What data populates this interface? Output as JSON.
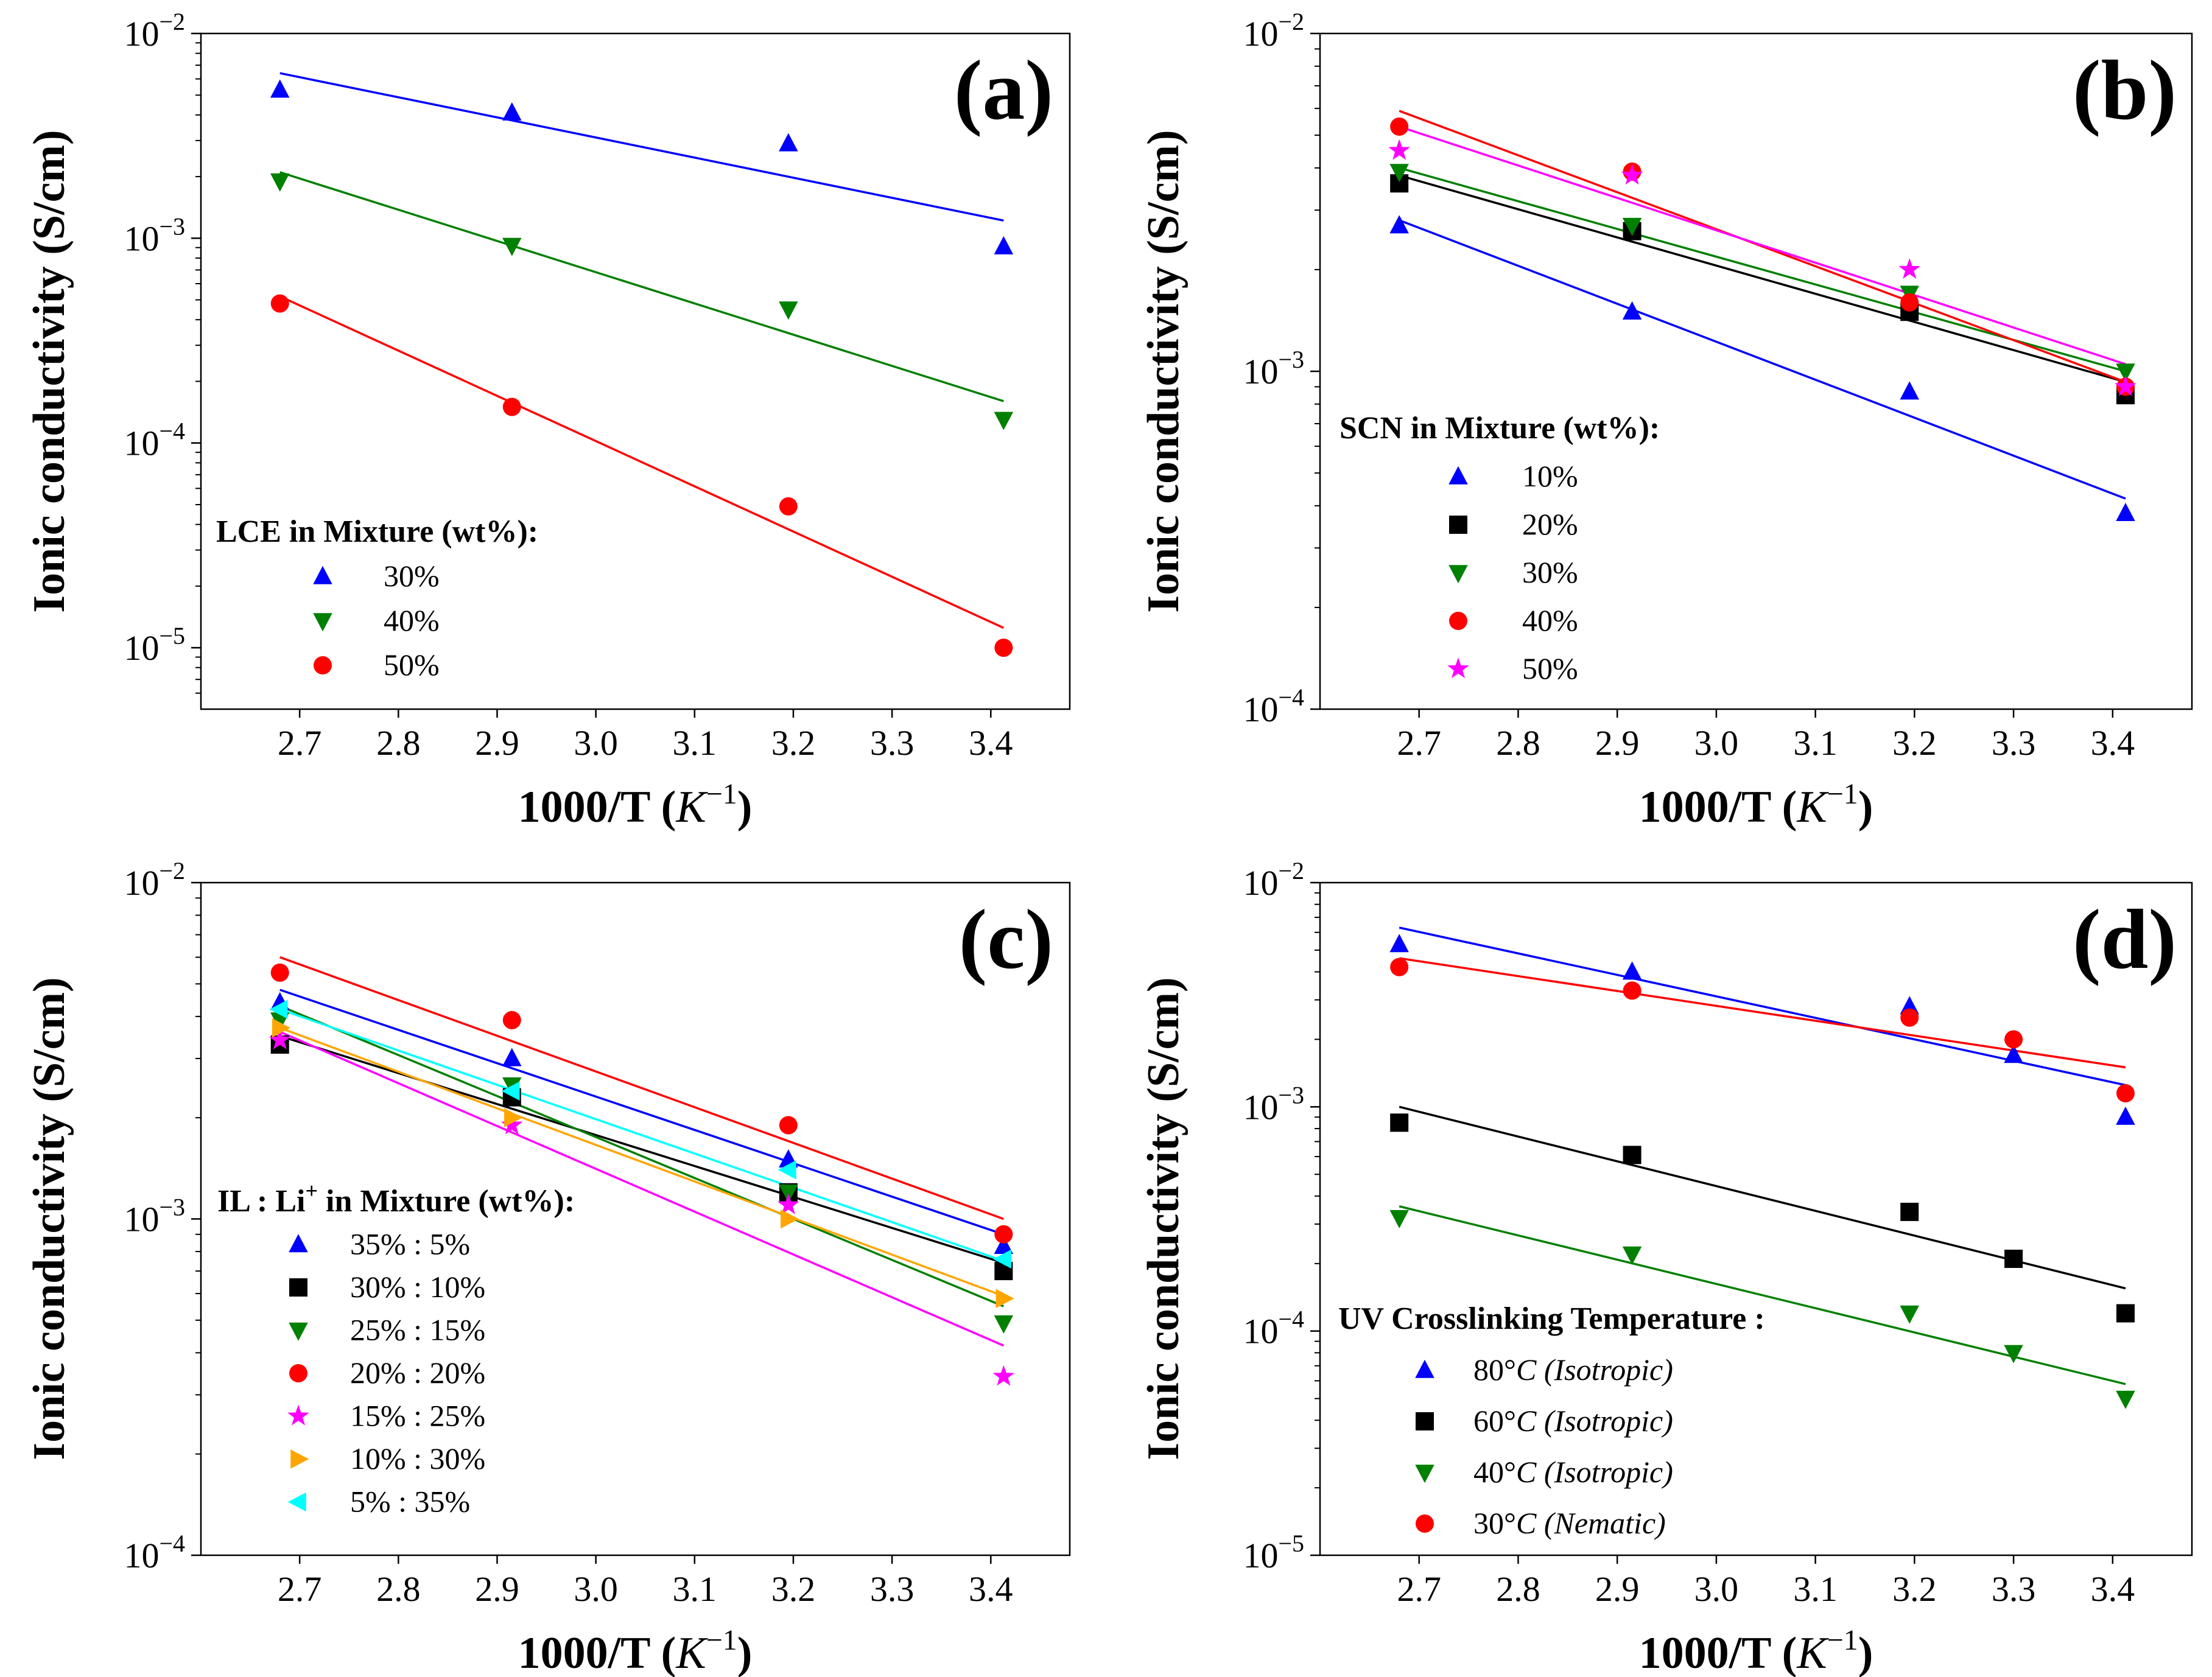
{
  "chart_data": [
    {
      "type": "scatter",
      "panel_label": "(a)",
      "xlabel": "1000/T",
      "xlabel_unit": "K",
      "xlabel_unit_exp": "−1",
      "ylabel": "Ionic conductivity (S/cm)",
      "yscale": "log",
      "xlim": [
        2.6,
        3.48
      ],
      "ylim": [
        -5.3,
        -2
      ],
      "xticks": [
        "2.7",
        "2.8",
        "2.9",
        "3.0",
        "3.1",
        "3.2",
        "3.3",
        "3.4"
      ],
      "yticks": [
        {
          "base": "10",
          "exp": "−2",
          "value": -2
        },
        {
          "base": "10",
          "exp": "−3",
          "value": -3
        },
        {
          "base": "10",
          "exp": "−4",
          "value": -4
        },
        {
          "base": "10",
          "exp": "−5",
          "value": -5
        }
      ],
      "legend_title": "LCE in Mixture (wt%):",
      "series": [
        {
          "name": "30%",
          "color": "#0000ff",
          "marker": "triangle-up",
          "x": [
            2.68,
            2.915,
            3.195,
            3.413
          ],
          "y": [
            0.0053,
            0.0041,
            0.0029,
            0.00091
          ],
          "fit": [
            0.0064,
            0.00122
          ]
        },
        {
          "name": "40%",
          "color": "#008000",
          "marker": "triangle-down",
          "x": [
            2.68,
            2.915,
            3.195,
            3.413
          ],
          "y": [
            0.0019,
            0.00092,
            0.00045,
            0.00013
          ],
          "fit": [
            0.0021,
            0.00016
          ]
        },
        {
          "name": "50%",
          "color": "#ff0000",
          "marker": "circle",
          "x": [
            2.68,
            2.915,
            3.195,
            3.413
          ],
          "y": [
            0.00048,
            0.00015,
            4.9e-05,
            1e-05
          ],
          "fit": [
            0.00052,
            1.25e-05
          ]
        }
      ]
    },
    {
      "type": "scatter",
      "panel_label": "(b)",
      "xlabel": "1000/T",
      "xlabel_unit": "K",
      "xlabel_unit_exp": "−1",
      "ylabel": "Ionic conductivity (S/cm)",
      "yscale": "log",
      "xlim": [
        2.6,
        3.48
      ],
      "ylim": [
        -4,
        -2
      ],
      "xticks": [
        "2.7",
        "2.8",
        "2.9",
        "3.0",
        "3.1",
        "3.2",
        "3.3",
        "3.4"
      ],
      "yticks": [
        {
          "base": "10",
          "exp": "−2",
          "value": -2
        },
        {
          "base": "10",
          "exp": "−3",
          "value": -3
        },
        {
          "base": "10",
          "exp": "−4",
          "value": -4
        }
      ],
      "legend_title": "SCN in Mixture (wt%):",
      "series": [
        {
          "name": "10%",
          "color": "#0000ff",
          "marker": "triangle-up",
          "x": [
            2.68,
            2.915,
            3.195,
            3.413
          ],
          "y": [
            0.0027,
            0.0015,
            0.00087,
            0.00038
          ],
          "fit": [
            0.0028,
            0.00042
          ]
        },
        {
          "name": "20%",
          "color": "#000000",
          "marker": "square",
          "x": [
            2.68,
            2.915,
            3.195,
            3.413
          ],
          "y": [
            0.0036,
            0.0026,
            0.0015,
            0.00085
          ],
          "fit": [
            0.0038,
            0.00093
          ]
        },
        {
          "name": "30%",
          "color": "#008000",
          "marker": "triangle-down",
          "x": [
            2.68,
            2.915,
            3.195,
            3.413
          ],
          "y": [
            0.0039,
            0.0027,
            0.0017,
            0.001
          ],
          "fit": [
            0.004,
            0.001
          ]
        },
        {
          "name": "40%",
          "color": "#ff0000",
          "marker": "circle",
          "x": [
            2.68,
            2.915,
            3.195,
            3.413
          ],
          "y": [
            0.0053,
            0.0039,
            0.0016,
            0.0009
          ],
          "fit": [
            0.0059,
            0.00093
          ]
        },
        {
          "name": "50%",
          "color": "#ff00ff",
          "marker": "star",
          "x": [
            2.68,
            2.915,
            3.195,
            3.413
          ],
          "y": [
            0.0045,
            0.0038,
            0.002,
            0.0009
          ],
          "fit": [
            0.0053,
            0.00105
          ]
        }
      ]
    },
    {
      "type": "scatter",
      "panel_label": "(c)",
      "xlabel": "1000/T",
      "xlabel_unit": "K",
      "xlabel_unit_exp": "−1",
      "ylabel": "Ionic conductivity (S/cm)",
      "yscale": "log",
      "xlim": [
        2.6,
        3.48
      ],
      "ylim": [
        -4,
        -2
      ],
      "xticks": [
        "2.7",
        "2.8",
        "2.9",
        "3.0",
        "3.1",
        "3.2",
        "3.3",
        "3.4"
      ],
      "yticks": [
        {
          "base": "10",
          "exp": "−2",
          "value": -2
        },
        {
          "base": "10",
          "exp": "−3",
          "value": -3
        },
        {
          "base": "10",
          "exp": "−4",
          "value": -4
        }
      ],
      "legend_title_prefix": "IL : Li",
      "legend_title_sup": "+",
      "legend_title_suffix": " in Mixture (wt%):",
      "series": [
        {
          "name": "35% : 5%",
          "color": "#0000ff",
          "marker": "triangle-up",
          "x": [
            2.68,
            2.915,
            3.195,
            3.413
          ],
          "y": [
            0.0044,
            0.003,
            0.0015,
            0.00083
          ],
          "fit": [
            0.0048,
            0.0009
          ]
        },
        {
          "name": "30% : 10%",
          "color": "#000000",
          "marker": "square",
          "x": [
            2.68,
            2.915,
            3.195,
            3.413
          ],
          "y": [
            0.0033,
            0.0023,
            0.0012,
            0.0007
          ],
          "fit": [
            0.0035,
            0.00074
          ]
        },
        {
          "name": "25% : 15%",
          "color": "#008000",
          "marker": "triangle-down",
          "x": [
            2.68,
            2.915,
            3.195,
            3.413
          ],
          "y": [
            0.0039,
            0.0025,
            0.0012,
            0.00049
          ],
          "fit": [
            0.0043,
            0.00055
          ]
        },
        {
          "name": "20% : 20%",
          "color": "#ff0000",
          "marker": "circle",
          "x": [
            2.68,
            2.915,
            3.195,
            3.413
          ],
          "y": [
            0.0054,
            0.0039,
            0.0019,
            0.0009
          ],
          "fit": [
            0.006,
            0.001
          ]
        },
        {
          "name": "15% : 25%",
          "color": "#ff00ff",
          "marker": "star",
          "x": [
            2.68,
            2.915,
            3.195,
            3.413
          ],
          "y": [
            0.0034,
            0.0019,
            0.0011,
            0.00034
          ],
          "fit": [
            0.0036,
            0.00042
          ]
        },
        {
          "name": "10% : 30%",
          "color": "#ffa500",
          "marker": "triangle-right",
          "x": [
            2.68,
            2.915,
            3.195,
            3.413
          ],
          "y": [
            0.0037,
            0.002,
            0.001,
            0.00058
          ],
          "fit": [
            0.0037,
            0.00059
          ]
        },
        {
          "name": "5% : 35%",
          "color": "#00ffff",
          "marker": "triangle-left",
          "x": [
            2.68,
            2.915,
            3.195,
            3.413
          ],
          "y": [
            0.0042,
            0.0024,
            0.0014,
            0.00076
          ],
          "fit": [
            0.0042,
            0.00075
          ]
        }
      ]
    },
    {
      "type": "scatter",
      "panel_label": "(d)",
      "xlabel": "1000/T",
      "xlabel_unit": "K",
      "xlabel_unit_exp": "−1",
      "ylabel": "Ionic conductivity (S/cm)",
      "yscale": "log",
      "xlim": [
        2.6,
        3.48
      ],
      "ylim": [
        -5,
        -2
      ],
      "xticks": [
        "2.7",
        "2.8",
        "2.9",
        "3.0",
        "3.1",
        "3.2",
        "3.3",
        "3.4"
      ],
      "yticks": [
        {
          "base": "10",
          "exp": "−2",
          "value": -2
        },
        {
          "base": "10",
          "exp": "−3",
          "value": -3
        },
        {
          "base": "10",
          "exp": "−4",
          "value": -4
        },
        {
          "base": "10",
          "exp": "−5",
          "value": -5
        }
      ],
      "legend_title": "UV Crosslinking Temperature :",
      "series": [
        {
          "name_prefix": "80°",
          "name_c": "C",
          "name_mode": "(Isotropic)",
          "color": "#0000ff",
          "marker": "triangle-up",
          "x": [
            2.68,
            2.915,
            3.195,
            3.3,
            3.413
          ],
          "y": [
            0.0053,
            0.004,
            0.0028,
            0.0017,
            0.0009
          ],
          "fit": [
            0.0063,
            0.00125
          ]
        },
        {
          "name_prefix": "60°",
          "name_c": "C",
          "name_mode": "(Isotropic)",
          "color": "#000000",
          "marker": "square",
          "x": [
            2.68,
            2.915,
            3.195,
            3.3,
            3.413
          ],
          "y": [
            0.00085,
            0.00061,
            0.00034,
            0.00021,
            0.00012
          ],
          "fit": [
            0.001,
            0.000155
          ]
        },
        {
          "name_prefix": "40°",
          "name_c": "C",
          "name_mode": "(Isotropic)",
          "color": "#008000",
          "marker": "triangle-down",
          "x": [
            2.68,
            2.915,
            3.195,
            3.3,
            3.413
          ],
          "y": [
            0.00032,
            0.00022,
            0.00012,
            8e-05,
            5e-05
          ],
          "fit": [
            0.00036,
            5.8e-05
          ]
        },
        {
          "name_prefix": "30°",
          "name_c": "C",
          "name_mode": "(Nematic)",
          "color": "#ff0000",
          "marker": "circle",
          "x": [
            2.68,
            2.915,
            3.195,
            3.3,
            3.413
          ],
          "y": [
            0.0042,
            0.0033,
            0.0025,
            0.002,
            0.00115
          ],
          "fit": [
            0.0046,
            0.0015
          ]
        }
      ]
    }
  ]
}
